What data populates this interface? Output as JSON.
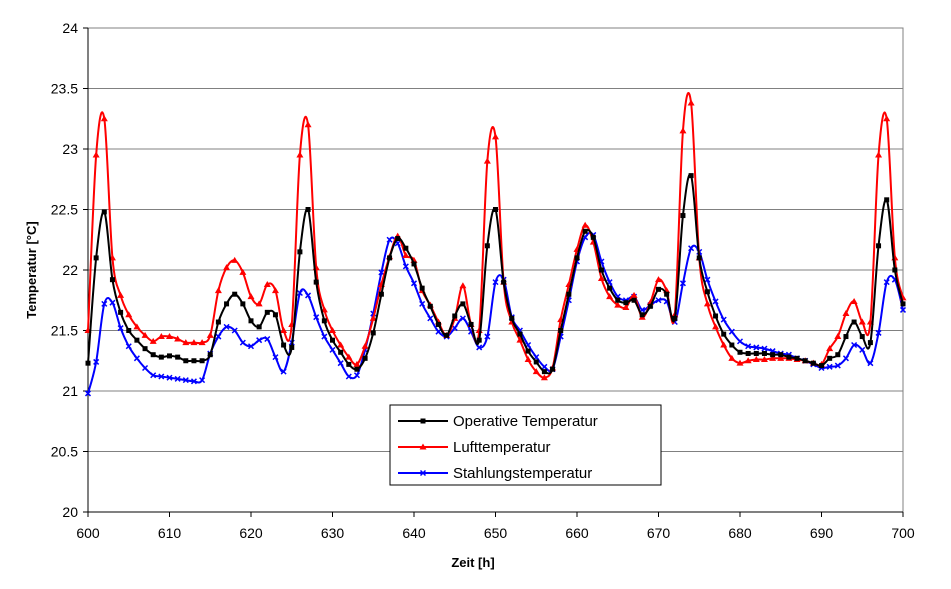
{
  "chart_data": {
    "type": "line",
    "title": "",
    "xlabel": "Zeit [h]",
    "ylabel": "Temperatur [°C]",
    "xlim": [
      600,
      700
    ],
    "ylim": [
      20,
      24
    ],
    "xticks": [
      600,
      610,
      620,
      630,
      640,
      650,
      660,
      670,
      680,
      690,
      700
    ],
    "yticks": [
      "20",
      "20.5",
      "21",
      "21.5",
      "22",
      "22.5",
      "23",
      "23.5",
      "24"
    ],
    "grid": true,
    "legend_position": "bottom-center",
    "x_start": 600,
    "x_step": 1,
    "series": [
      {
        "name": "Operative Temperatur",
        "color": "#000000",
        "marker": "square",
        "values": [
          21.23,
          22.1,
          22.48,
          21.92,
          21.65,
          21.5,
          21.42,
          21.35,
          21.3,
          21.28,
          21.29,
          21.28,
          21.25,
          21.25,
          21.25,
          21.3,
          21.57,
          21.72,
          21.8,
          21.72,
          21.58,
          21.53,
          21.65,
          21.63,
          21.38,
          21.36,
          22.15,
          22.5,
          21.9,
          21.58,
          21.42,
          21.32,
          21.22,
          21.18,
          21.27,
          21.48,
          21.8,
          22.1,
          22.26,
          22.18,
          22.05,
          21.85,
          21.7,
          21.55,
          21.46,
          21.62,
          21.72,
          21.55,
          21.42,
          22.2,
          22.5,
          21.9,
          21.6,
          21.47,
          21.33,
          21.24,
          21.16,
          21.18,
          21.5,
          21.8,
          22.1,
          22.32,
          22.27,
          22.0,
          21.85,
          21.75,
          21.73,
          21.75,
          21.63,
          21.7,
          21.84,
          21.8,
          21.6,
          22.45,
          22.78,
          22.1,
          21.82,
          21.62,
          21.47,
          21.38,
          21.32,
          21.31,
          21.31,
          21.31,
          21.3,
          21.3,
          21.28,
          21.27,
          21.25,
          21.23,
          21.21,
          21.27,
          21.3,
          21.45,
          21.57,
          21.45,
          21.4,
          22.2,
          22.58,
          22.0,
          21.72
        ]
      },
      {
        "name": "Lufttemperatur",
        "color": "#ff0000",
        "marker": "triangle",
        "values": [
          21.5,
          22.95,
          23.25,
          22.1,
          21.79,
          21.63,
          21.53,
          21.46,
          21.41,
          21.45,
          21.45,
          21.43,
          21.4,
          21.4,
          21.4,
          21.46,
          21.83,
          22.02,
          22.08,
          21.98,
          21.78,
          21.72,
          21.88,
          21.83,
          21.5,
          21.55,
          22.95,
          23.2,
          22.02,
          21.67,
          21.5,
          21.38,
          21.28,
          21.22,
          21.37,
          21.6,
          21.88,
          22.11,
          22.28,
          22.12,
          22.08,
          21.83,
          21.71,
          21.57,
          21.46,
          21.6,
          21.87,
          21.55,
          21.5,
          22.9,
          23.1,
          21.9,
          21.57,
          21.42,
          21.26,
          21.16,
          21.11,
          21.19,
          21.59,
          21.88,
          22.17,
          22.37,
          22.23,
          21.93,
          21.78,
          21.71,
          21.69,
          21.79,
          21.61,
          21.73,
          21.92,
          21.83,
          21.63,
          23.15,
          23.38,
          22.1,
          21.72,
          21.53,
          21.38,
          21.27,
          21.23,
          21.25,
          21.26,
          21.26,
          21.27,
          21.27,
          21.27,
          21.26,
          21.25,
          21.23,
          21.22,
          21.35,
          21.45,
          21.64,
          21.74,
          21.57,
          21.57,
          22.95,
          23.25,
          22.1,
          21.77
        ]
      },
      {
        "name": "Stahlungstemperatur",
        "color": "#0000ff",
        "marker": "x",
        "values": [
          20.98,
          21.24,
          21.72,
          21.73,
          21.52,
          21.37,
          21.27,
          21.19,
          21.13,
          21.12,
          21.11,
          21.1,
          21.09,
          21.08,
          21.09,
          21.31,
          21.45,
          21.53,
          21.5,
          21.4,
          21.37,
          21.42,
          21.43,
          21.28,
          21.16,
          21.4,
          21.81,
          21.79,
          21.61,
          21.45,
          21.34,
          21.23,
          21.12,
          21.13,
          21.34,
          21.64,
          21.98,
          22.25,
          22.22,
          22.03,
          21.89,
          21.72,
          21.6,
          21.49,
          21.45,
          21.52,
          21.6,
          21.49,
          21.36,
          21.45,
          21.9,
          21.92,
          21.61,
          21.5,
          21.38,
          21.28,
          21.2,
          21.18,
          21.45,
          21.75,
          22.07,
          22.27,
          22.29,
          22.07,
          21.9,
          21.78,
          21.75,
          21.78,
          21.67,
          21.71,
          21.75,
          21.74,
          21.57,
          21.89,
          22.18,
          22.15,
          21.92,
          21.74,
          21.59,
          21.49,
          21.41,
          21.37,
          21.36,
          21.35,
          21.33,
          21.31,
          21.3,
          21.27,
          21.25,
          21.22,
          21.19,
          21.2,
          21.21,
          21.27,
          21.38,
          21.34,
          21.23,
          21.48,
          21.9,
          21.92,
          21.67
        ]
      }
    ]
  }
}
